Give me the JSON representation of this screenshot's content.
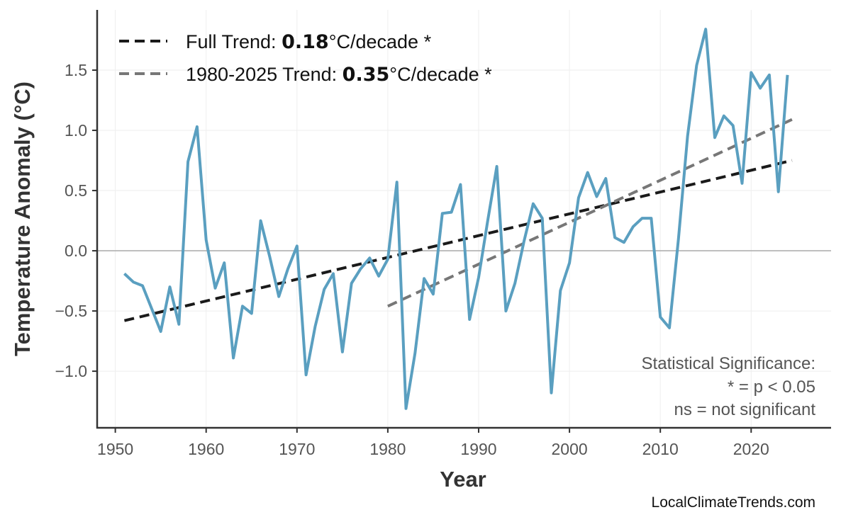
{
  "chart_data": {
    "type": "line",
    "xlabel": "Year",
    "ylabel": "Temperature Anomaly (°C)",
    "xlim": [
      1948,
      2028.8
    ],
    "ylim": [
      -1.47,
      2.0
    ],
    "xticks": [
      1950,
      1960,
      1970,
      1980,
      1990,
      2000,
      2010,
      2020
    ],
    "yticks": [
      -1.0,
      -0.5,
      0.0,
      0.5,
      1.0,
      1.5
    ],
    "ytick_labels": [
      "−1.0",
      "−0.5",
      "0.0",
      "0.5",
      "1.0",
      "1.5"
    ],
    "grid": true,
    "colors": {
      "series": "#5a9fc0",
      "full_trend": "#1a1a1a",
      "recent_trend": "#777777",
      "zero_line": "#aaaaaa"
    },
    "series": [
      {
        "x": [
          1951,
          1952,
          1953,
          1954,
          1955,
          1956,
          1957,
          1958,
          1959,
          1960,
          1961,
          1962,
          1963,
          1964,
          1965,
          1966,
          1967,
          1968,
          1969,
          1970,
          1971,
          1972,
          1973,
          1974,
          1975,
          1976,
          1977,
          1978,
          1979,
          1980,
          1981,
          1982,
          1983,
          1984,
          1985,
          1986,
          1987,
          1988,
          1989,
          1990,
          1991,
          1992,
          1993,
          1994,
          1995,
          1996,
          1997,
          1998,
          1999,
          2000,
          2001,
          2002,
          2003,
          2004,
          2005,
          2006,
          2007,
          2008,
          2009,
          2010,
          2011,
          2012,
          2013,
          2014,
          2015,
          2016,
          2017,
          2018,
          2019,
          2020,
          2021,
          2022,
          2023,
          2024
        ],
        "y": [
          -0.19,
          -0.26,
          -0.29,
          -0.48,
          -0.67,
          -0.3,
          -0.61,
          0.74,
          1.03,
          0.09,
          -0.31,
          -0.1,
          -0.89,
          -0.46,
          -0.52,
          0.25,
          -0.05,
          -0.38,
          -0.15,
          0.04,
          -1.03,
          -0.63,
          -0.32,
          -0.19,
          -0.84,
          -0.27,
          -0.15,
          -0.06,
          -0.21,
          -0.07,
          0.57,
          -1.31,
          -0.85,
          -0.23,
          -0.36,
          0.31,
          0.32,
          0.55,
          -0.57,
          -0.22,
          0.25,
          0.7,
          -0.5,
          -0.27,
          0.08,
          0.39,
          0.27,
          -1.18,
          -0.33,
          -0.1,
          0.44,
          0.65,
          0.45,
          0.6,
          0.11,
          0.07,
          0.2,
          0.27,
          0.27,
          -0.55,
          -0.64,
          0.1,
          0.95,
          1.54,
          1.84,
          0.94,
          1.12,
          1.04,
          0.56,
          1.48,
          1.35,
          1.46,
          0.49,
          1.46
        ]
      }
    ],
    "trends": [
      {
        "label_prefix": "Full Trend: ",
        "value": "0.18",
        "label_suffix": "°C/decade *",
        "x": [
          1951,
          2024.5
        ],
        "y": [
          -0.58,
          0.75
        ],
        "style": "dashed-black"
      },
      {
        "label_prefix": "1980-2025 Trend: ",
        "value": "0.35",
        "label_suffix": "°C/decade *",
        "x": [
          1980,
          2024.5
        ],
        "y": [
          -0.46,
          1.09
        ],
        "style": "dashed-gray"
      }
    ],
    "legend_position": "top-left",
    "annotations": [
      "Statistical Significance:",
      "* = p < 0.05",
      "ns = not significant"
    ]
  },
  "credit": "LocalClimateTrends.com"
}
